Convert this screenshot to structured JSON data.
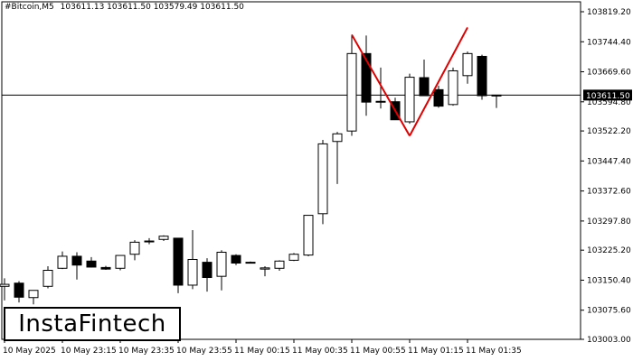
{
  "header": {
    "symbol": "#Bitcoin,M5",
    "ohlc": "103611.13 103611.50 103579.49 103611.50"
  },
  "logo": {
    "text": "InstaFintech"
  },
  "current_price_label": "103611.50",
  "chart_data": {
    "type": "candlestick",
    "title": "",
    "xlabel": "",
    "ylabel": "",
    "ylim": [
      103003.0,
      103819.2
    ],
    "grid": false,
    "y_ticks": [
      "103819.20",
      "103744.40",
      "103669.60",
      "103594.80",
      "103522.20",
      "103447.40",
      "103372.60",
      "103297.80",
      "103225.20",
      "103150.40",
      "103075.60",
      "103003.00"
    ],
    "y_tick_values": [
      103819.2,
      103744.4,
      103669.6,
      103594.8,
      103522.2,
      103447.4,
      103372.6,
      103297.8,
      103225.2,
      103150.4,
      103075.6,
      103003.0
    ],
    "x_ticks": [
      "10 May 2025",
      "10 May 23:15",
      "10 May 23:35",
      "10 May 23:55",
      "11 May 00:15",
      "11 May 00:35",
      "11 May 00:55",
      "11 May 01:15",
      "11 May 01:35"
    ],
    "x_tick_index": [
      0,
      4,
      8,
      12,
      16,
      20,
      24,
      28,
      32
    ],
    "current_price": 103611.5,
    "candles": [
      {
        "o": 103135,
        "h": 103155,
        "l": 103100,
        "c": 103140
      },
      {
        "o": 103143,
        "h": 103148,
        "l": 103095,
        "c": 103108
      },
      {
        "o": 103107,
        "h": 103125,
        "l": 103090,
        "c": 103125
      },
      {
        "o": 103135,
        "h": 103185,
        "l": 103130,
        "c": 103175
      },
      {
        "o": 103180,
        "h": 103222,
        "l": 103178,
        "c": 103210
      },
      {
        "o": 103210,
        "h": 103220,
        "l": 103152,
        "c": 103188
      },
      {
        "o": 103198,
        "h": 103208,
        "l": 103182,
        "c": 103183
      },
      {
        "o": 103182,
        "h": 103186,
        "l": 103176,
        "c": 103178
      },
      {
        "o": 103180,
        "h": 103210,
        "l": 103175,
        "c": 103212
      },
      {
        "o": 103215,
        "h": 103250,
        "l": 103200,
        "c": 103245
      },
      {
        "o": 103246,
        "h": 103255,
        "l": 103240,
        "c": 103248
      },
      {
        "o": 103252,
        "h": 103262,
        "l": 103248,
        "c": 103260
      },
      {
        "o": 103255,
        "h": 103256,
        "l": 103118,
        "c": 103138
      },
      {
        "o": 103138,
        "h": 103275,
        "l": 103128,
        "c": 103202
      },
      {
        "o": 103195,
        "h": 103205,
        "l": 103122,
        "c": 103157
      },
      {
        "o": 103160,
        "h": 103225,
        "l": 103125,
        "c": 103220
      },
      {
        "o": 103212,
        "h": 103215,
        "l": 103188,
        "c": 103193
      },
      {
        "o": 103195,
        "h": 103197,
        "l": 103192,
        "c": 103193
      },
      {
        "o": 103178,
        "h": 103185,
        "l": 103160,
        "c": 103181
      },
      {
        "o": 103180,
        "h": 103200,
        "l": 103174,
        "c": 103198
      },
      {
        "o": 103200,
        "h": 103218,
        "l": 103198,
        "c": 103215
      },
      {
        "o": 103213,
        "h": 103312,
        "l": 103210,
        "c": 103312
      },
      {
        "o": 103316,
        "h": 103500,
        "l": 103290,
        "c": 103490
      },
      {
        "o": 103496,
        "h": 103520,
        "l": 103390,
        "c": 103515
      },
      {
        "o": 103522,
        "h": 103762,
        "l": 103510,
        "c": 103715
      },
      {
        "o": 103715,
        "h": 103760,
        "l": 103560,
        "c": 103594
      },
      {
        "o": 103596,
        "h": 103680,
        "l": 103578,
        "c": 103596
      },
      {
        "o": 103595,
        "h": 103605,
        "l": 103550,
        "c": 103550
      },
      {
        "o": 103545,
        "h": 103665,
        "l": 103540,
        "c": 103656
      },
      {
        "o": 103655,
        "h": 103700,
        "l": 103615,
        "c": 103610
      },
      {
        "o": 103625,
        "h": 103635,
        "l": 103580,
        "c": 103584
      },
      {
        "o": 103588,
        "h": 103680,
        "l": 103585,
        "c": 103672
      },
      {
        "o": 103660,
        "h": 103720,
        "l": 103640,
        "c": 103715
      },
      {
        "o": 103708,
        "h": 103712,
        "l": 103600,
        "c": 103610
      },
      {
        "o": 103611.13,
        "h": 103611.5,
        "l": 103579.49,
        "c": 103611.5
      }
    ],
    "pattern_lines": [
      {
        "from": {
          "index": 24,
          "value": 103762
        },
        "to": {
          "index": 28,
          "value": 103510
        }
      },
      {
        "from": {
          "index": 28,
          "value": 103510
        },
        "to": {
          "index": 32,
          "value": 103780
        }
      }
    ],
    "colors": {
      "bull_fill": "#ffffff",
      "bear_fill": "#000000",
      "wick": "#000000",
      "pattern": "#e00000",
      "price_line": "#000000",
      "price_label_bg": "#000000",
      "price_label_fg": "#ffffff"
    }
  }
}
